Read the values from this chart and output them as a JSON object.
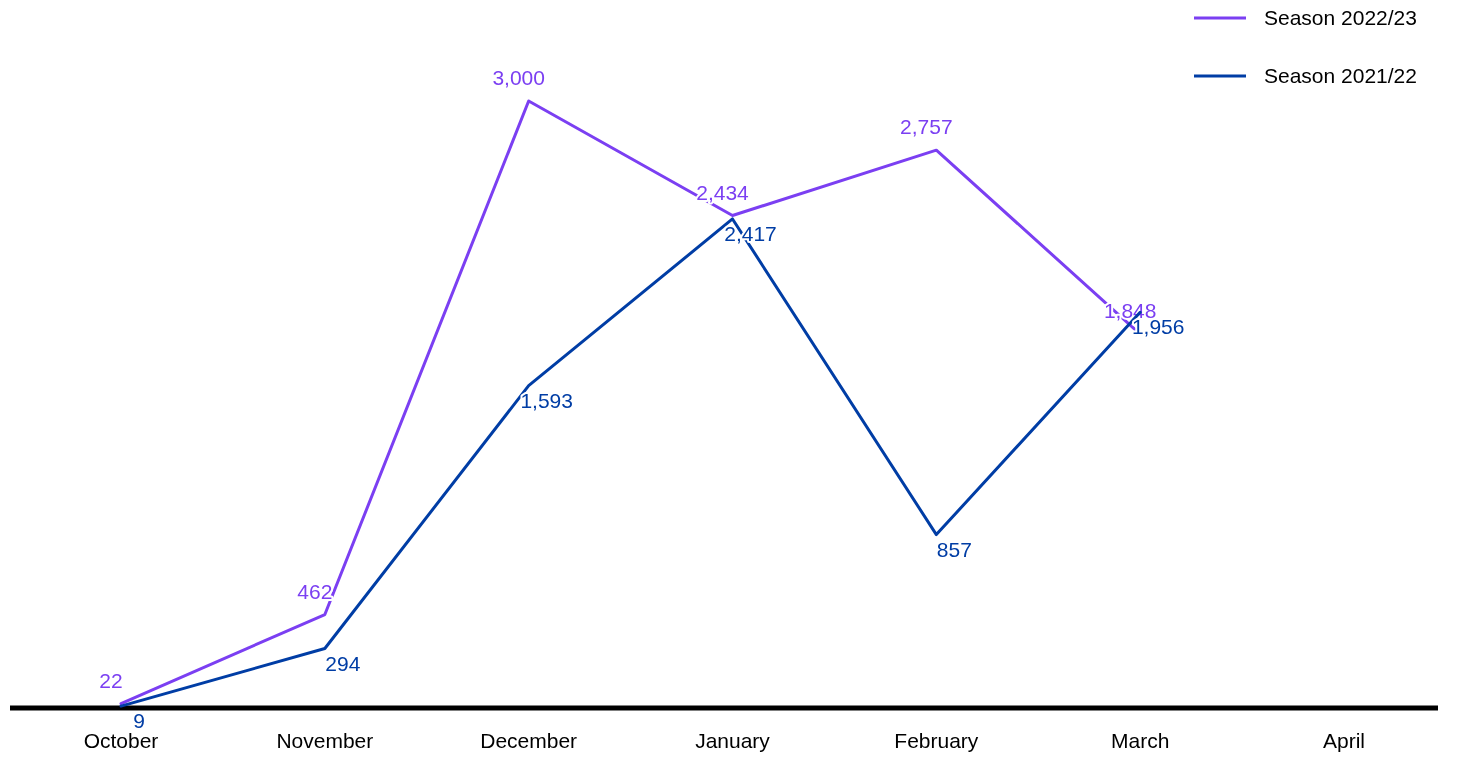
{
  "chart_data": {
    "type": "line",
    "categories": [
      "October",
      "November",
      "December",
      "January",
      "February",
      "March",
      "April"
    ],
    "series": [
      {
        "name": "Season 2022/23",
        "color": "#7b3ff2",
        "values": [
          22,
          462,
          3000,
          2434,
          2757,
          1848,
          null
        ],
        "value_labels": [
          "22",
          "462",
          "3,000",
          "2,434",
          "2,757",
          "1,848",
          null
        ]
      },
      {
        "name": "Season 2021/22",
        "color": "#003da5",
        "values": [
          9,
          294,
          1593,
          2417,
          857,
          1956,
          null
        ],
        "value_labels": [
          "9",
          "294",
          "1,593",
          "2,417",
          "857",
          "1,956",
          null
        ]
      }
    ],
    "legend": "top right",
    "line_style": "solid"
  }
}
